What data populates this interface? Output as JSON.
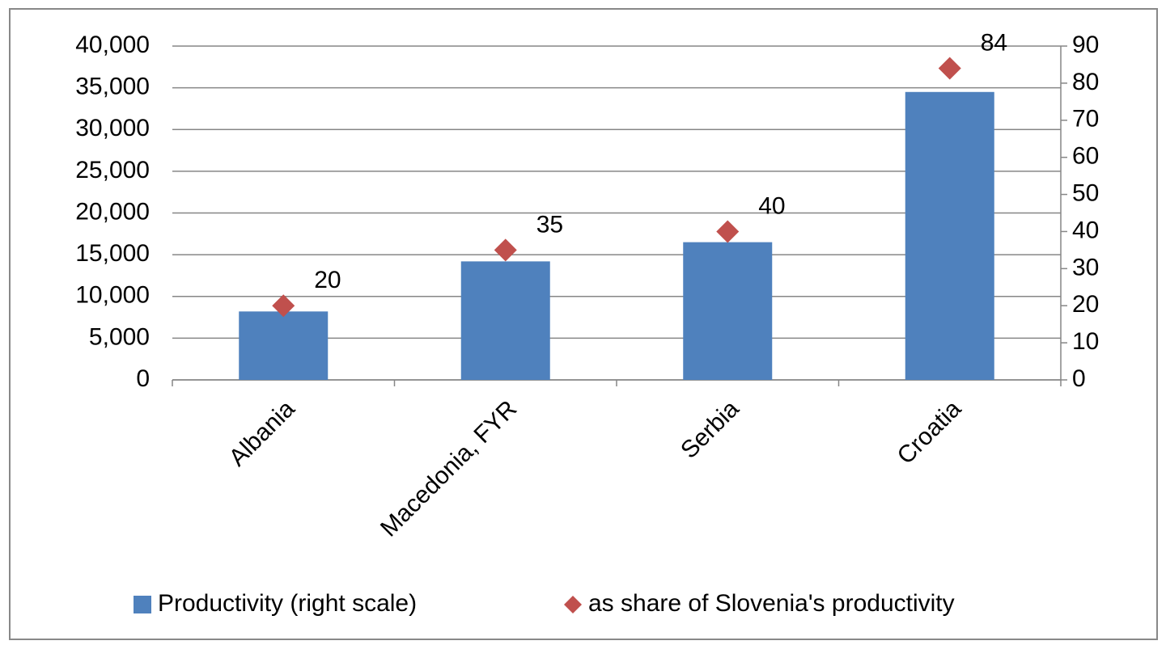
{
  "chart_data": {
    "type": "bar",
    "categories": [
      "Albania",
      "Macedonia, FYR",
      "Serbia",
      "Croatia"
    ],
    "series": [
      {
        "name": "Productivity (right scale)",
        "type": "bar",
        "color": "#4f81bd",
        "values": [
          8200,
          14200,
          16500,
          34500
        ]
      },
      {
        "name": "as share of Slovenia's productivity",
        "type": "scatter",
        "marker": "diamond",
        "axis": "y2",
        "color": "#c0504d",
        "values": [
          20,
          35,
          40,
          84
        ]
      }
    ],
    "ylim": [
      0,
      40000
    ],
    "yticks": [
      {
        "value": 0,
        "label": "0"
      },
      {
        "value": 5000,
        "label": "5,000"
      },
      {
        "value": 10000,
        "label": "10,000"
      },
      {
        "value": 15000,
        "label": "15,000"
      },
      {
        "value": 20000,
        "label": "20,000"
      },
      {
        "value": 25000,
        "label": "25,000"
      },
      {
        "value": 30000,
        "label": "30,000"
      },
      {
        "value": 35000,
        "label": "35,000"
      },
      {
        "value": 40000,
        "label": "40,000"
      }
    ],
    "y2lim": [
      0,
      90
    ],
    "y2ticks": [
      0,
      10,
      20,
      30,
      40,
      50,
      60,
      70,
      80,
      90
    ],
    "grid": true,
    "legend": "bottom"
  }
}
